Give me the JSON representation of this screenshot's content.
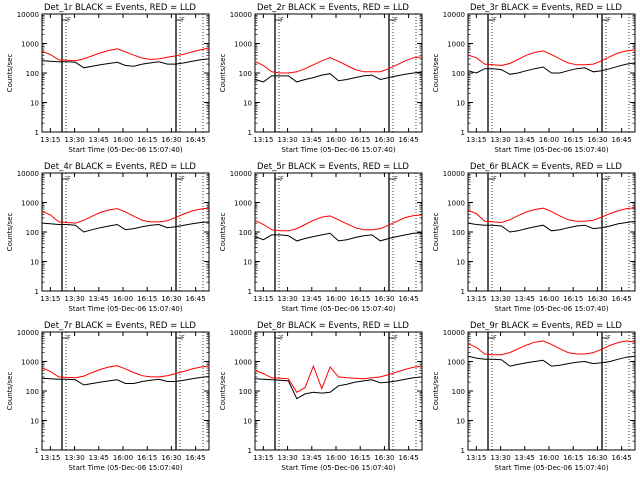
{
  "figure": {
    "x_tick_labels": [
      "13:15",
      "13:30",
      "13:45",
      "16:00",
      "16:15",
      "16:30",
      "16:45"
    ],
    "y_tick_labels": [
      "1",
      "10",
      "100",
      "1000",
      "10000"
    ],
    "ylabel": "Counts/sec",
    "xlabel": "Start Time (05-Dec-06 15:07:40)",
    "flag_label": "F",
    "colors": {
      "events": "#000000",
      "lld": "#ff0000",
      "axes": "#000000",
      "background": "#ffffff"
    }
  },
  "chart_data": [
    {
      "type": "line",
      "title": "Det_1r BLACK = Events, RED = LLD",
      "xlabel": "Start Time (05-Dec-06 15:07:40)",
      "ylabel": "Counts/sec",
      "yscale": "log",
      "ylim": [
        1,
        10000
      ],
      "xlim": [
        0,
        1
      ],
      "grid": false,
      "x": [
        0,
        0.05,
        0.1,
        0.15,
        0.2,
        0.25,
        0.3,
        0.35,
        0.4,
        0.45,
        0.5,
        0.55,
        0.6,
        0.65,
        0.7,
        0.75,
        0.8,
        0.85,
        0.9,
        0.95,
        1
      ],
      "series": [
        {
          "name": "LLD",
          "values": [
            550,
            420,
            280,
            270,
            260,
            300,
            380,
            480,
            580,
            660,
            520,
            400,
            320,
            290,
            300,
            340,
            380,
            430,
            520,
            610,
            700
          ]
        },
        {
          "name": "Events",
          "values": [
            260,
            250,
            240,
            240,
            230,
            150,
            170,
            190,
            210,
            230,
            180,
            170,
            200,
            220,
            240,
            200,
            200,
            220,
            250,
            280,
            300
          ]
        }
      ]
    },
    {
      "type": "line",
      "title": "Det_2r BLACK = Events, RED = LLD",
      "xlabel": "Start Time (05-Dec-06 15:07:40)",
      "ylabel": "Counts/sec",
      "yscale": "log",
      "ylim": [
        1,
        10000
      ],
      "xlim": [
        0,
        1
      ],
      "grid": false,
      "x": [
        0,
        0.05,
        0.1,
        0.15,
        0.2,
        0.25,
        0.3,
        0.35,
        0.4,
        0.45,
        0.5,
        0.55,
        0.6,
        0.65,
        0.7,
        0.75,
        0.8,
        0.85,
        0.9,
        0.95,
        1
      ],
      "series": [
        {
          "name": "LLD",
          "values": [
            250,
            180,
            110,
            100,
            100,
            110,
            140,
            190,
            260,
            330,
            250,
            180,
            130,
            110,
            110,
            110,
            140,
            190,
            260,
            330,
            350
          ]
        },
        {
          "name": "Events",
          "values": [
            60,
            50,
            80,
            80,
            80,
            50,
            60,
            70,
            85,
            95,
            55,
            60,
            70,
            80,
            85,
            60,
            70,
            80,
            90,
            100,
            110
          ]
        }
      ]
    },
    {
      "type": "line",
      "title": "Det_3r BLACK = Events, RED = LLD",
      "xlabel": "Start Time (05-Dec-06 15:07:40)",
      "ylabel": "Counts/sec",
      "yscale": "log",
      "ylim": [
        1,
        10000
      ],
      "xlim": [
        0,
        1
      ],
      "grid": false,
      "x": [
        0,
        0.05,
        0.1,
        0.15,
        0.2,
        0.25,
        0.3,
        0.35,
        0.4,
        0.45,
        0.5,
        0.55,
        0.6,
        0.65,
        0.7,
        0.75,
        0.8,
        0.85,
        0.9,
        0.95,
        1
      ],
      "series": [
        {
          "name": "LLD",
          "values": [
            400,
            330,
            200,
            190,
            180,
            210,
            290,
            400,
            500,
            560,
            420,
            300,
            220,
            190,
            190,
            200,
            260,
            360,
            480,
            560,
            600
          ]
        },
        {
          "name": "Events",
          "values": [
            120,
            100,
            140,
            140,
            130,
            90,
            100,
            120,
            140,
            160,
            100,
            100,
            120,
            140,
            150,
            110,
            120,
            140,
            170,
            200,
            220
          ]
        }
      ]
    },
    {
      "type": "line",
      "title": "Det_4r BLACK = Events, RED = LLD",
      "xlabel": "Start Time (05-Dec-06 15:07:40)",
      "ylabel": "Counts/sec",
      "yscale": "log",
      "ylim": [
        1,
        10000
      ],
      "xlim": [
        0,
        1
      ],
      "grid": false,
      "x": [
        0,
        0.05,
        0.1,
        0.15,
        0.2,
        0.25,
        0.3,
        0.35,
        0.4,
        0.45,
        0.5,
        0.55,
        0.6,
        0.65,
        0.7,
        0.75,
        0.8,
        0.85,
        0.9,
        0.95,
        1
      ],
      "series": [
        {
          "name": "LLD",
          "values": [
            500,
            380,
            220,
            210,
            200,
            250,
            340,
            460,
            560,
            620,
            480,
            340,
            250,
            220,
            220,
            240,
            310,
            410,
            520,
            600,
            650
          ]
        },
        {
          "name": "Events",
          "values": [
            200,
            190,
            180,
            180,
            170,
            100,
            120,
            140,
            160,
            180,
            120,
            130,
            150,
            170,
            180,
            140,
            150,
            170,
            190,
            210,
            220
          ]
        }
      ]
    },
    {
      "type": "line",
      "title": "Det_5r BLACK = Events, RED = LLD",
      "xlabel": "Start Time (05-Dec-06 15:07:40)",
      "ylabel": "Counts/sec",
      "yscale": "log",
      "ylim": [
        1,
        10000
      ],
      "xlim": [
        0,
        1
      ],
      "grid": false,
      "x": [
        0,
        0.05,
        0.1,
        0.15,
        0.2,
        0.25,
        0.3,
        0.35,
        0.4,
        0.45,
        0.5,
        0.55,
        0.6,
        0.65,
        0.7,
        0.75,
        0.8,
        0.85,
        0.9,
        0.95,
        1
      ],
      "series": [
        {
          "name": "LLD",
          "values": [
            250,
            180,
            120,
            110,
            110,
            130,
            180,
            250,
            320,
            350,
            260,
            190,
            140,
            120,
            120,
            130,
            170,
            230,
            310,
            360,
            380
          ]
        },
        {
          "name": "Events",
          "values": [
            70,
            55,
            80,
            80,
            75,
            50,
            60,
            70,
            80,
            90,
            50,
            55,
            65,
            75,
            80,
            50,
            60,
            70,
            80,
            90,
            95
          ]
        }
      ]
    },
    {
      "type": "line",
      "title": "Det_6r BLACK = Events, RED = LLD",
      "xlabel": "Start Time (05-Dec-06 15:07:40)",
      "ylabel": "Counts/sec",
      "yscale": "log",
      "ylim": [
        1,
        10000
      ],
      "xlim": [
        0,
        1
      ],
      "grid": false,
      "x": [
        0,
        0.05,
        0.1,
        0.15,
        0.2,
        0.25,
        0.3,
        0.35,
        0.4,
        0.45,
        0.5,
        0.55,
        0.6,
        0.65,
        0.7,
        0.75,
        0.8,
        0.85,
        0.9,
        0.95,
        1
      ],
      "series": [
        {
          "name": "LLD",
          "values": [
            550,
            420,
            230,
            220,
            210,
            260,
            360,
            480,
            580,
            640,
            500,
            350,
            260,
            230,
            230,
            250,
            320,
            420,
            530,
            620,
            660
          ]
        },
        {
          "name": "Events",
          "values": [
            200,
            180,
            170,
            170,
            160,
            100,
            110,
            130,
            150,
            170,
            110,
            120,
            140,
            160,
            170,
            130,
            140,
            160,
            190,
            210,
            230
          ]
        }
      ]
    },
    {
      "type": "line",
      "title": "Det_7r BLACK = Events, RED = LLD",
      "xlabel": "Start Time (05-Dec-06 15:07:40)",
      "ylabel": "Counts/sec",
      "yscale": "log",
      "ylim": [
        1,
        10000
      ],
      "xlim": [
        0,
        1
      ],
      "grid": false,
      "x": [
        0,
        0.05,
        0.1,
        0.15,
        0.2,
        0.25,
        0.3,
        0.35,
        0.4,
        0.45,
        0.5,
        0.55,
        0.6,
        0.65,
        0.7,
        0.75,
        0.8,
        0.85,
        0.9,
        0.95,
        1
      ],
      "series": [
        {
          "name": "LLD",
          "values": [
            600,
            460,
            300,
            290,
            280,
            320,
            420,
            540,
            650,
            720,
            560,
            420,
            330,
            300,
            300,
            330,
            390,
            460,
            560,
            650,
            700
          ]
        },
        {
          "name": "Events",
          "values": [
            270,
            260,
            250,
            250,
            240,
            160,
            180,
            200,
            220,
            240,
            180,
            180,
            210,
            230,
            250,
            210,
            210,
            230,
            260,
            290,
            310
          ]
        }
      ]
    },
    {
      "type": "line",
      "title": "Det_8r BLACK = Events, RED = LLD",
      "xlabel": "Start Time (05-Dec-06 15:07:40)",
      "ylabel": "Counts/sec",
      "yscale": "log",
      "ylim": [
        1,
        10000
      ],
      "xlim": [
        0,
        1
      ],
      "grid": false,
      "x": [
        0,
        0.05,
        0.1,
        0.15,
        0.2,
        0.25,
        0.3,
        0.35,
        0.4,
        0.45,
        0.5,
        0.55,
        0.6,
        0.65,
        0.7,
        0.75,
        0.8,
        0.85,
        0.9,
        0.95,
        1
      ],
      "series": [
        {
          "name": "LLD",
          "values": [
            500,
            390,
            280,
            270,
            260,
            90,
            130,
            700,
            120,
            650,
            300,
            280,
            270,
            260,
            280,
            300,
            360,
            440,
            540,
            640,
            700
          ]
        },
        {
          "name": "Events",
          "values": [
            260,
            250,
            240,
            230,
            220,
            55,
            80,
            90,
            85,
            90,
            150,
            170,
            200,
            220,
            240,
            190,
            200,
            220,
            250,
            280,
            300
          ]
        }
      ]
    },
    {
      "type": "line",
      "title": "Det_9r BLACK = Events, RED = LLD",
      "xlabel": "Start Time (05-Dec-06 15:07:40)",
      "ylabel": "Counts/sec",
      "yscale": "log",
      "ylim": [
        1,
        10000
      ],
      "xlim": [
        0,
        1
      ],
      "grid": false,
      "x": [
        0,
        0.05,
        0.1,
        0.15,
        0.2,
        0.25,
        0.3,
        0.35,
        0.4,
        0.45,
        0.5,
        0.55,
        0.6,
        0.65,
        0.7,
        0.75,
        0.8,
        0.85,
        0.9,
        0.95,
        1
      ],
      "series": [
        {
          "name": "LLD",
          "values": [
            4000,
            3000,
            1800,
            1700,
            1700,
            2000,
            2700,
            3600,
            4500,
            5000,
            3800,
            2700,
            2000,
            1800,
            1800,
            2000,
            2600,
            3500,
            4400,
            5000,
            4500
          ]
        },
        {
          "name": "Events",
          "values": [
            1500,
            1300,
            1200,
            1200,
            1150,
            700,
            800,
            900,
            1000,
            1100,
            700,
            750,
            850,
            950,
            1000,
            850,
            900,
            1000,
            1200,
            1400,
            1500
          ]
        }
      ]
    }
  ]
}
